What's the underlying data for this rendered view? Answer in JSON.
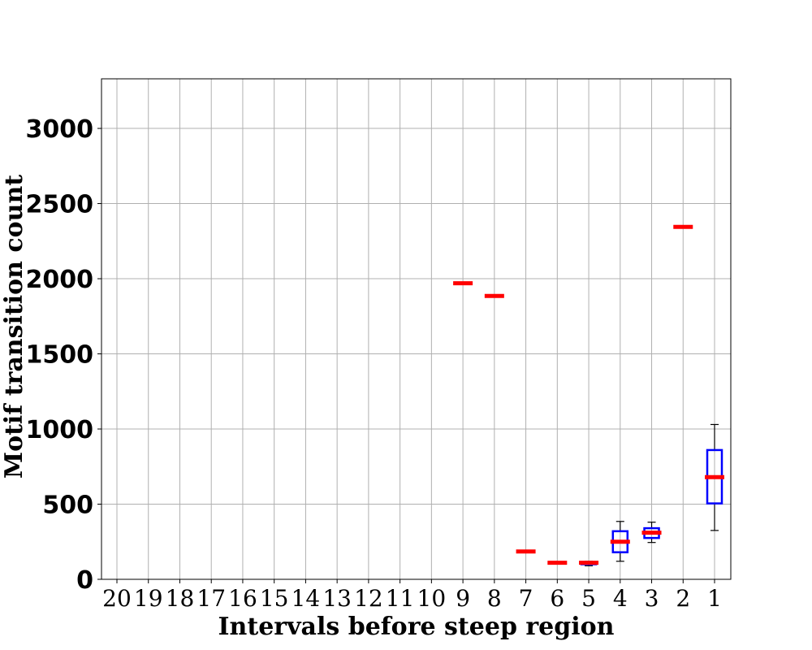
{
  "chart_data": {
    "type": "box",
    "xlabel": "Intervals before steep region",
    "ylabel": "Motif transition count",
    "categories": [
      "20",
      "19",
      "18",
      "17",
      "16",
      "15",
      "14",
      "13",
      "12",
      "11",
      "10",
      "9",
      "8",
      "7",
      "6",
      "5",
      "4",
      "3",
      "2",
      "1"
    ],
    "ylim": [
      0,
      3330
    ],
    "yticks": [
      0,
      500,
      1000,
      1500,
      2000,
      2500,
      3000
    ],
    "grid": true,
    "colors": {
      "box": "#0000ff",
      "median": "#ff0000",
      "whisker": "#000000",
      "grid": "#b0b0b0"
    },
    "boxes": [
      {
        "category": "9",
        "min": 1970,
        "q1": 1970,
        "median": 1970,
        "q3": 1970,
        "max": 1970
      },
      {
        "category": "8",
        "min": 1885,
        "q1": 1885,
        "median": 1885,
        "q3": 1885,
        "max": 1885
      },
      {
        "category": "7",
        "min": 185,
        "q1": 185,
        "median": 185,
        "q3": 185,
        "max": 185
      },
      {
        "category": "6",
        "min": 110,
        "q1": 110,
        "median": 110,
        "q3": 110,
        "max": 110
      },
      {
        "category": "5",
        "min": 90,
        "q1": 100,
        "median": 110,
        "q3": 115,
        "max": 120
      },
      {
        "category": "4",
        "min": 120,
        "q1": 180,
        "median": 250,
        "q3": 320,
        "max": 385
      },
      {
        "category": "3",
        "min": 245,
        "q1": 275,
        "median": 310,
        "q3": 340,
        "max": 380
      },
      {
        "category": "2",
        "min": 2345,
        "q1": 2345,
        "median": 2345,
        "q3": 2345,
        "max": 2345
      },
      {
        "category": "1",
        "min": 325,
        "q1": 505,
        "median": 680,
        "q3": 860,
        "max": 1030
      }
    ]
  }
}
